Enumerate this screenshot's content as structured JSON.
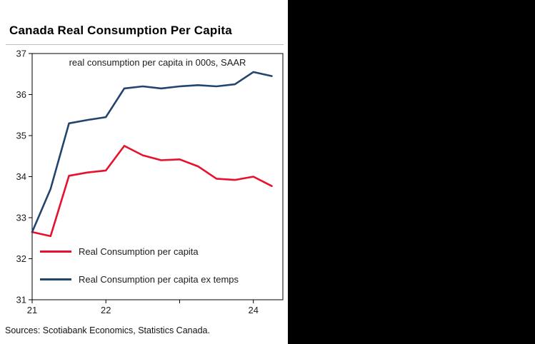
{
  "canvas": {
    "background": "#000000",
    "panel_background": "#ffffff"
  },
  "title": "Canada Real Consumption Per Capita",
  "subtitle": "real consumption per capita in 000s, SAAR",
  "source": "Sources: Scotiabank Economics, Statistics Canada.",
  "legend": [
    {
      "label": "Real Consumption per capita",
      "color": "#e8112d"
    },
    {
      "label": "Real Consumption per capita ex temps",
      "color": "#22456e"
    }
  ],
  "chart_data": {
    "type": "line",
    "title": "Canada Real Consumption Per Capita",
    "subtitle": "real consumption per capita in 000s, SAAR",
    "xlabel": "",
    "ylabel": "real consumption per capita in 000s, SAAR",
    "x": [
      21.0,
      21.25,
      21.5,
      21.75,
      22.0,
      22.25,
      22.5,
      22.75,
      23.0,
      23.25,
      23.5,
      23.75,
      24.0,
      24.25
    ],
    "series": [
      {
        "name": "Real Consumption per capita",
        "color": "#e8112d",
        "values": [
          32.65,
          32.55,
          34.02,
          34.1,
          34.15,
          34.75,
          34.52,
          34.4,
          34.42,
          34.25,
          33.95,
          33.92,
          34.0,
          33.77
        ]
      },
      {
        "name": "Real Consumption per capita ex temps",
        "color": "#22456e",
        "values": [
          32.65,
          33.7,
          35.3,
          35.38,
          35.45,
          36.15,
          36.2,
          36.15,
          36.2,
          36.23,
          36.2,
          36.25,
          36.55,
          36.45
        ]
      }
    ],
    "xlim": [
      21.0,
      24.4
    ],
    "ylim": [
      31,
      37
    ],
    "yticks": [
      31,
      32,
      33,
      34,
      35,
      36,
      37
    ],
    "xticks": [
      {
        "value": 21,
        "label": "21"
      },
      {
        "value": 22,
        "label": "22"
      },
      {
        "value": 23,
        "label": ""
      },
      {
        "value": 24,
        "label": "24"
      }
    ],
    "grid": false,
    "legend_position": "lower left"
  }
}
